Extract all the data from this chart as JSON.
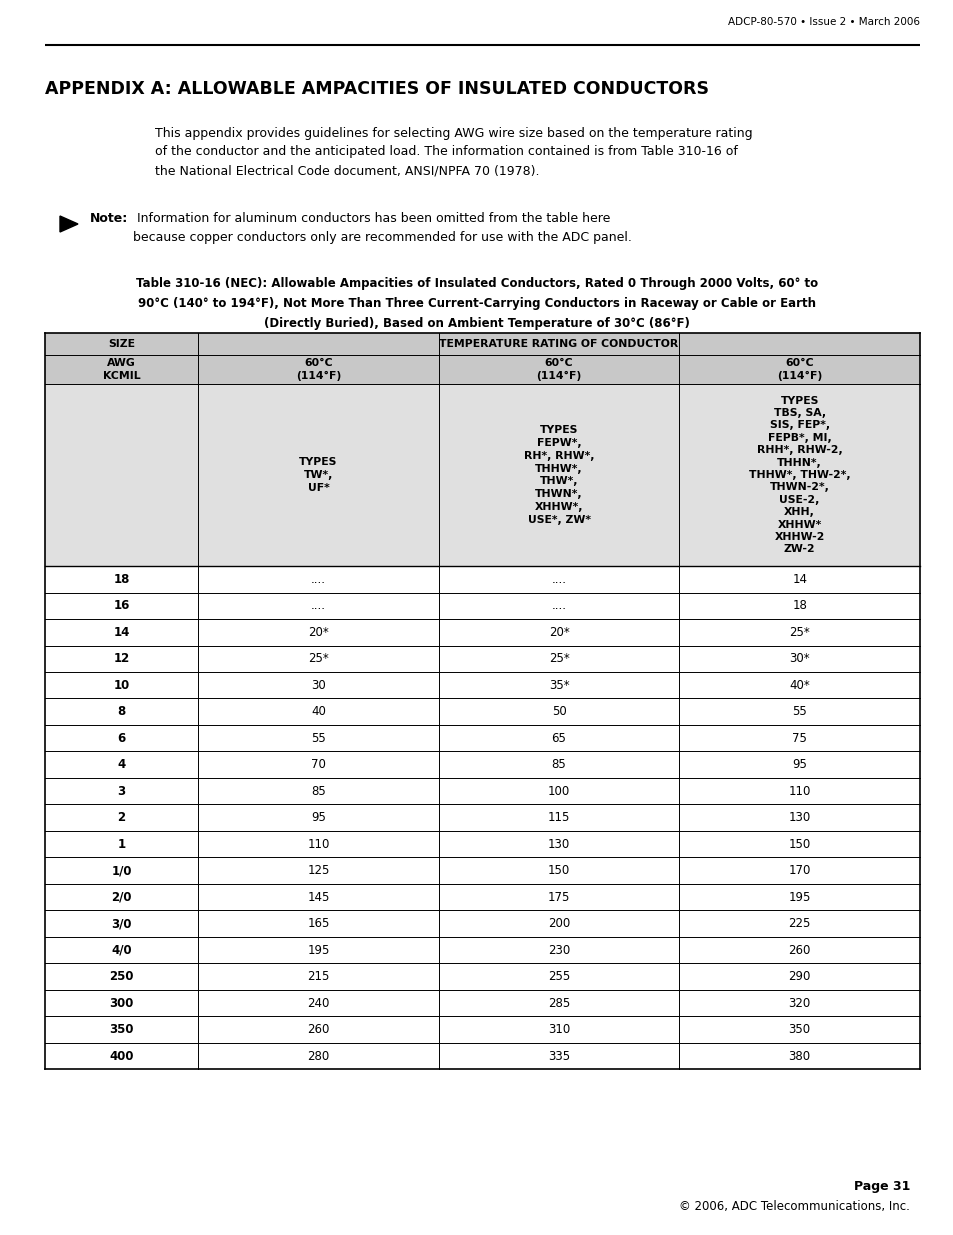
{
  "header_text": "ADCP-80-570 • Issue 2 • March 2006",
  "title": "APPENDIX A: ALLOWABLE AMPACITIES OF INSULATED CONDUCTORS",
  "intro_text": "This appendix provides guidelines for selecting AWG wire size based on the temperature rating\nof the conductor and the anticipated load. The information contained is from Table 310-16 of\nthe National Electrical Code document, ANSI/NPFA 70 (1978).",
  "note_bold": "Note:",
  "note_rest": " Information for aluminum conductors has been omitted from the table here\nbecause copper conductors only are recommended for use with the ADC panel.",
  "table_caption_line1": "Table 310-16 (NEC): Allowable Ampacities of Insulated Conductors, Rated 0 Through 2000 Volts, 60° to",
  "table_caption_line2": "90°C (140° to 194°F), Not More Than Three Current-Carrying Conductors in Raceway or Cable or Earth",
  "table_caption_line3": "(Directly Buried), Based on Ambient Temperature of 30°C (86°F)",
  "col3_type1": "TYPES\nTW*,\nUF*",
  "col3_type2": "TYPES\nFEPW*,\nRH*, RHW*,\nTHHW*,\nTHW*,\nTHWN*,\nXHHW*,\nUSE*, ZW*",
  "col3_type3": "TYPES\nTBS, SA,\nSIS, FEP*,\nFEPB*, MI,\nRHH*, RHW-2,\nTHHN*,\nTHHW*, THW-2*,\nTHWN-2*,\nUSE-2,\nXHH,\nXHHW*\nXHHW-2\nZW-2",
  "rows": [
    [
      "18",
      "....",
      "....",
      "14"
    ],
    [
      "16",
      "....",
      "....",
      "18"
    ],
    [
      "14",
      "20*",
      "20*",
      "25*"
    ],
    [
      "12",
      "25*",
      "25*",
      "30*"
    ],
    [
      "10",
      "30",
      "35*",
      "40*"
    ],
    [
      "8",
      "40",
      "50",
      "55"
    ],
    [
      "6",
      "55",
      "65",
      "75"
    ],
    [
      "4",
      "70",
      "85",
      "95"
    ],
    [
      "3",
      "85",
      "100",
      "110"
    ],
    [
      "2",
      "95",
      "115",
      "130"
    ],
    [
      "1",
      "110",
      "130",
      "150"
    ],
    [
      "1/0",
      "125",
      "150",
      "170"
    ],
    [
      "2/0",
      "145",
      "175",
      "195"
    ],
    [
      "3/0",
      "165",
      "200",
      "225"
    ],
    [
      "4/0",
      "195",
      "230",
      "260"
    ],
    [
      "250",
      "215",
      "255",
      "290"
    ],
    [
      "300",
      "240",
      "285",
      "320"
    ],
    [
      "350",
      "260",
      "310",
      "350"
    ],
    [
      "400",
      "280",
      "335",
      "380"
    ]
  ],
  "footer_line1": "Page 31",
  "footer_line2": "© 2006, ADC Telecommunications, Inc.",
  "bg_color": "#ffffff",
  "header_bg": "#c8c8c8",
  "types_bg": "#e0e0e0",
  "line_color": "#000000"
}
